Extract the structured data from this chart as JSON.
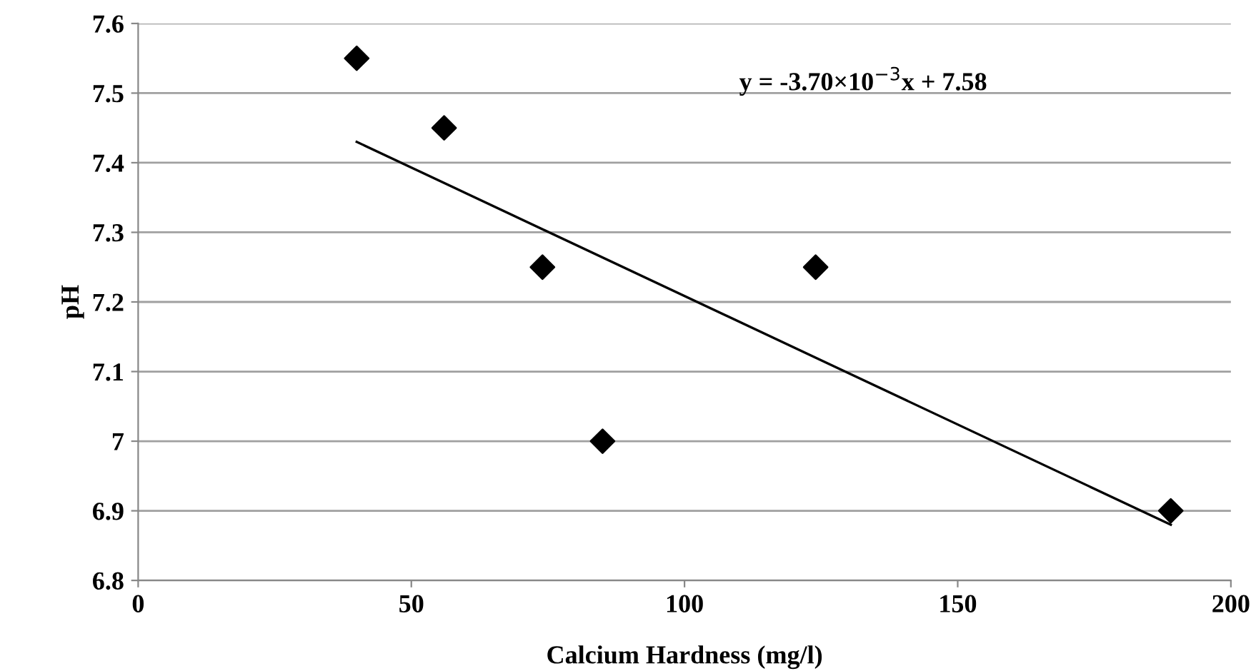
{
  "chart_data": {
    "type": "scatter",
    "xlabel": "Calcium Hardness (mg/l)",
    "ylabel": "pH",
    "annotations": [
      "y = -3.70×10$^{−3}$x + 7.58"
    ],
    "xlim": [
      0,
      200
    ],
    "xticks": [
      0,
      50,
      100,
      150,
      200
    ],
    "ylim": [
      6.8,
      7.6
    ],
    "yticks": [
      6.8,
      6.9,
      7,
      7.1,
      7.2,
      7.3,
      7.4,
      7.5,
      7.6
    ],
    "grid": "y",
    "series": [
      {
        "color": "#000000",
        "marker": "diamond",
        "x": [
          40,
          56,
          74,
          85,
          124,
          189
        ],
        "values": [
          7.55,
          7.45,
          7.25,
          7.0,
          7.25,
          6.9
        ]
      },
      {
        "type": "line",
        "color": "#000000",
        "marker": "none",
        "line_style": "solid",
        "x": [
          40,
          189
        ],
        "values": [
          7.43,
          6.88
        ]
      }
    ]
  }
}
